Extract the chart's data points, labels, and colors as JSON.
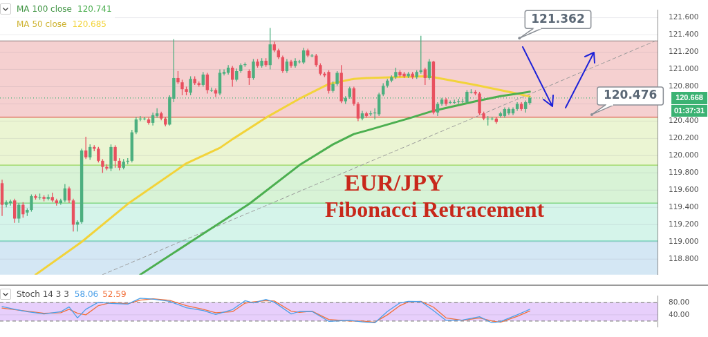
{
  "chart_data": [
    {
      "type": "candlestick",
      "title": "EUR/JPY",
      "subtitle": "Fibonacci Retracement",
      "categories": [
        null,
        null,
        null,
        null,
        null,
        null,
        null,
        null,
        null,
        null,
        null,
        null,
        null,
        null,
        null,
        null,
        null,
        null,
        null,
        null,
        null,
        null,
        null,
        null,
        null,
        null,
        null,
        null,
        null,
        null,
        null,
        null,
        null,
        null,
        null,
        null,
        null,
        null,
        null,
        null,
        null,
        null,
        null,
        null,
        null,
        null,
        null,
        null,
        null,
        null,
        null,
        null,
        null,
        null,
        null,
        null,
        null,
        null,
        null,
        null,
        null,
        null,
        null,
        null,
        null,
        null,
        null,
        null,
        null,
        null,
        null,
        null,
        null,
        null,
        null,
        null,
        null,
        null,
        null,
        null,
        null,
        null,
        null,
        null,
        null,
        null,
        null,
        null,
        null,
        null,
        null,
        null,
        null,
        null,
        null,
        null,
        null,
        null,
        null,
        null,
        null,
        null,
        null,
        null,
        null,
        null,
        null,
        null,
        null,
        null,
        null,
        null,
        null,
        null,
        null,
        null,
        null,
        null,
        null,
        null,
        null,
        null,
        null,
        null,
        null,
        null,
        null,
        null,
        null,
        null,
        null,
        null,
        null,
        null,
        null,
        null,
        null,
        null,
        null,
        null,
        null,
        null,
        null,
        null,
        null,
        null,
        null,
        null,
        null,
        null,
        null,
        null,
        null,
        null,
        null,
        null,
        null
      ],
      "ohlc": [
        [
          119.68,
          119.72,
          119.3,
          119.43
        ],
        [
          119.43,
          119.48,
          119.4,
          119.46
        ],
        [
          119.45,
          119.49,
          119.42,
          119.47
        ],
        [
          119.48,
          119.5,
          119.22,
          119.27
        ],
        [
          119.27,
          119.45,
          119.22,
          119.43
        ],
        [
          119.43,
          119.46,
          119.28,
          119.32
        ],
        [
          119.34,
          119.39,
          119.3,
          119.37
        ],
        [
          119.37,
          119.55,
          119.35,
          119.53
        ],
        [
          119.53,
          119.55,
          119.49,
          119.51
        ],
        [
          119.52,
          119.56,
          119.49,
          119.52
        ],
        [
          119.52,
          119.54,
          119.47,
          119.5
        ],
        [
          119.5,
          119.55,
          119.48,
          119.52
        ],
        [
          119.52,
          119.57,
          119.46,
          119.48
        ],
        [
          119.48,
          119.5,
          119.42,
          119.45
        ],
        [
          119.45,
          119.5,
          119.43,
          119.48
        ],
        [
          119.48,
          119.67,
          119.46,
          119.62
        ],
        [
          119.62,
          119.64,
          119.45,
          119.48
        ],
        [
          119.48,
          119.5,
          119.12,
          119.2
        ],
        [
          119.2,
          119.25,
          119.12,
          119.23
        ],
        [
          119.23,
          120.08,
          119.21,
          120.06
        ],
        [
          120.06,
          120.22,
          119.96,
          119.98
        ],
        [
          119.98,
          120.13,
          119.95,
          120.1
        ],
        [
          120.1,
          120.12,
          120.05,
          120.08
        ],
        [
          120.08,
          120.1,
          119.92,
          119.94
        ],
        [
          119.94,
          119.96,
          119.8,
          119.87
        ],
        [
          119.87,
          119.9,
          119.83,
          119.85
        ],
        [
          119.85,
          120.13,
          119.82,
          120.1
        ],
        [
          120.1,
          120.12,
          119.86,
          119.94
        ],
        [
          119.94,
          119.97,
          119.83,
          119.86
        ],
        [
          119.86,
          119.96,
          119.84,
          119.93
        ],
        [
          119.93,
          119.97,
          119.9,
          119.94
        ],
        [
          119.94,
          120.3,
          119.92,
          120.27
        ],
        [
          120.27,
          120.45,
          120.25,
          120.42
        ],
        [
          120.42,
          120.46,
          120.4,
          120.43
        ],
        [
          120.43,
          120.45,
          120.41,
          120.43
        ],
        [
          120.42,
          120.44,
          120.36,
          120.38
        ],
        [
          120.38,
          120.5,
          120.35,
          120.47
        ],
        [
          120.46,
          120.55,
          120.44,
          120.49
        ],
        [
          120.49,
          120.51,
          120.41,
          120.43
        ],
        [
          120.43,
          120.45,
          120.34,
          120.36
        ],
        [
          120.36,
          120.7,
          120.35,
          120.68
        ],
        [
          120.66,
          121.35,
          120.62,
          120.9
        ],
        [
          120.9,
          120.98,
          120.83,
          120.85
        ],
        [
          120.85,
          120.88,
          120.7,
          120.77
        ],
        [
          120.77,
          120.8,
          120.7,
          120.74
        ],
        [
          120.73,
          120.92,
          120.7,
          120.89
        ],
        [
          120.89,
          120.92,
          120.82,
          120.84
        ],
        [
          120.84,
          120.86,
          120.8,
          120.82
        ],
        [
          120.82,
          120.97,
          120.8,
          120.94
        ],
        [
          120.94,
          120.96,
          120.72,
          120.76
        ],
        [
          120.76,
          120.79,
          120.74,
          120.76
        ],
        [
          120.76,
          120.78,
          120.68,
          120.72
        ],
        [
          120.72,
          121.0,
          120.7,
          120.96
        ],
        [
          120.95,
          121.0,
          120.93,
          120.97
        ],
        [
          120.96,
          121.05,
          120.94,
          121.02
        ],
        [
          121.02,
          121.04,
          120.8,
          120.88
        ],
        [
          120.88,
          121.01,
          120.86,
          120.98
        ],
        [
          120.98,
          121.07,
          120.96,
          121.05
        ],
        [
          121.05,
          121.08,
          121.03,
          121.06
        ],
        [
          120.98,
          121.0,
          120.82,
          120.9
        ],
        [
          120.9,
          121.12,
          120.88,
          121.09
        ],
        [
          121.09,
          121.12,
          121.02,
          121.04
        ],
        [
          121.04,
          121.13,
          121.02,
          121.1
        ],
        [
          121.1,
          121.13,
          121.03,
          121.05
        ],
        [
          121.05,
          121.48,
          121.0,
          121.29
        ],
        [
          121.29,
          121.32,
          121.2,
          121.22
        ],
        [
          121.22,
          121.24,
          121.12,
          121.14
        ],
        [
          121.14,
          121.16,
          120.96,
          120.98
        ],
        [
          120.98,
          121.12,
          120.96,
          121.09
        ],
        [
          121.09,
          121.11,
          121.02,
          121.04
        ],
        [
          121.04,
          121.13,
          121.02,
          121.1
        ],
        [
          121.09,
          121.11,
          121.07,
          121.09
        ],
        [
          121.08,
          121.25,
          121.06,
          121.22
        ],
        [
          121.22,
          121.24,
          121.14,
          121.16
        ],
        [
          121.16,
          121.18,
          121.14,
          121.16
        ],
        [
          121.16,
          121.18,
          121.03,
          121.05
        ],
        [
          121.05,
          121.07,
          120.93,
          120.95
        ],
        [
          120.95,
          120.97,
          120.91,
          120.93
        ],
        [
          120.97,
          120.99,
          120.72,
          120.75
        ],
        [
          120.75,
          120.86,
          120.73,
          120.83
        ],
        [
          120.83,
          120.98,
          120.81,
          120.96
        ],
        [
          120.96,
          121.05,
          120.61,
          120.63
        ],
        [
          120.63,
          120.69,
          120.6,
          120.67
        ],
        [
          120.68,
          120.8,
          120.66,
          120.78
        ],
        [
          120.78,
          120.8,
          120.58,
          120.6
        ],
        [
          120.6,
          120.62,
          120.4,
          120.43
        ],
        [
          120.43,
          120.52,
          120.41,
          120.49
        ],
        [
          120.49,
          120.51,
          120.44,
          120.46
        ],
        [
          120.48,
          120.52,
          120.46,
          120.49
        ],
        [
          120.49,
          120.55,
          120.42,
          120.5
        ],
        [
          120.48,
          120.73,
          120.46,
          120.71
        ],
        [
          120.71,
          120.84,
          120.69,
          120.81
        ],
        [
          120.81,
          120.89,
          120.79,
          120.87
        ],
        [
          120.87,
          120.93,
          120.85,
          120.91
        ],
        [
          120.91,
          121.02,
          120.89,
          120.97
        ],
        [
          120.97,
          120.99,
          120.91,
          120.93
        ],
        [
          120.95,
          120.97,
          120.9,
          120.92
        ],
        [
          120.92,
          120.97,
          120.9,
          120.95
        ],
        [
          120.95,
          120.97,
          120.89,
          120.91
        ],
        [
          120.91,
          120.99,
          120.89,
          120.97
        ],
        [
          120.97,
          121.39,
          120.95,
          120.99
        ],
        [
          121.0,
          121.02,
          120.82,
          120.9
        ],
        [
          120.9,
          121.12,
          120.88,
          121.09
        ],
        [
          121.09,
          121.1,
          120.48,
          120.5
        ],
        [
          120.5,
          120.62,
          120.46,
          120.6
        ],
        [
          120.6,
          120.67,
          120.58,
          120.65
        ],
        [
          120.65,
          120.67,
          120.58,
          120.6
        ],
        [
          120.62,
          120.64,
          120.6,
          120.62
        ],
        [
          120.62,
          120.65,
          120.6,
          120.62
        ],
        [
          120.62,
          120.66,
          120.6,
          120.63
        ],
        [
          120.63,
          120.66,
          120.61,
          120.63
        ],
        [
          120.62,
          120.76,
          120.6,
          120.74
        ],
        [
          120.74,
          120.77,
          120.72,
          120.74
        ],
        [
          120.74,
          120.76,
          120.7,
          120.72
        ],
        [
          120.72,
          120.74,
          120.47,
          120.49
        ],
        [
          120.49,
          120.51,
          120.41,
          120.43
        ],
        [
          120.43,
          120.46,
          120.35,
          120.43
        ],
        [
          120.43,
          120.45,
          120.41,
          120.43
        ],
        [
          120.43,
          120.45,
          120.37,
          120.39
        ],
        [
          120.46,
          120.51,
          120.44,
          120.49
        ],
        [
          120.46,
          120.56,
          120.44,
          120.54
        ],
        [
          120.49,
          120.56,
          120.47,
          120.54
        ],
        [
          120.49,
          120.56,
          120.47,
          120.54
        ],
        [
          120.54,
          120.62,
          120.52,
          120.6
        ],
        [
          120.6,
          120.62,
          120.52,
          120.54
        ],
        [
          120.54,
          120.64,
          120.5,
          120.62
        ],
        [
          120.61,
          120.69,
          120.59,
          120.67
        ],
        null,
        null,
        null,
        null,
        null,
        null,
        null,
        null,
        null,
        null,
        null,
        null,
        null,
        null,
        null,
        null,
        null,
        null,
        null,
        null,
        null,
        null,
        null,
        null,
        null,
        null,
        null,
        null,
        null,
        null
      ],
      "series": [
        {
          "type": "line",
          "name": "MA 100 close",
          "color": "#4caf50",
          "values": [
            null,
            null,
            null,
            null,
            null,
            null,
            null,
            null,
            null,
            null,
            null,
            null,
            null,
            null,
            null,
            null,
            null,
            null,
            null,
            null,
            null,
            null,
            null,
            null,
            null,
            null,
            null,
            null,
            null,
            null,
            null,
            null,
            null,
            118.62,
            null,
            null,
            null,
            null,
            null,
            null,
            null,
            null,
            null,
            null,
            null,
            119.0,
            null,
            null,
            null,
            null,
            null,
            null,
            null,
            null,
            null,
            null,
            null,
            null,
            null,
            119.44,
            null,
            null,
            null,
            null,
            null,
            null,
            null,
            null,
            null,
            null,
            null,
            119.89,
            null,
            null,
            null,
            null,
            null,
            null,
            null,
            120.13,
            null,
            null,
            null,
            null,
            120.25,
            null,
            null,
            120.29,
            null,
            null,
            null,
            null,
            null,
            null,
            null,
            null,
            null,
            120.43,
            null,
            null,
            null,
            null,
            null,
            120.52,
            null,
            null,
            null,
            null,
            null,
            null,
            null,
            null,
            null,
            120.63,
            null,
            null,
            null,
            null,
            null,
            120.69,
            null,
            null,
            null,
            null,
            null,
            null,
            120.741,
            null,
            null,
            null,
            null,
            null,
            null,
            null,
            null,
            null,
            null,
            null,
            null,
            null,
            null,
            null,
            null,
            null,
            null,
            null,
            null,
            null,
            null,
            null,
            null,
            null,
            null,
            null,
            null,
            null,
            null
          ]
        },
        {
          "type": "line",
          "name": "MA 50 close",
          "color": "#f2d33a",
          "values": [
            null,
            null,
            null,
            null,
            null,
            null,
            null,
            null,
            118.62,
            null,
            null,
            null,
            null,
            null,
            null,
            null,
            null,
            null,
            null,
            119.0,
            null,
            null,
            null,
            null,
            null,
            null,
            null,
            null,
            null,
            null,
            119.44,
            null,
            null,
            null,
            null,
            null,
            null,
            null,
            null,
            null,
            null,
            null,
            null,
            null,
            119.91,
            null,
            null,
            null,
            null,
            null,
            null,
            null,
            120.09,
            null,
            null,
            120.19,
            null,
            null,
            null,
            null,
            null,
            null,
            null,
            120.44,
            null,
            null,
            null,
            null,
            null,
            null,
            null,
            120.66,
            null,
            null,
            null,
            null,
            null,
            null,
            120.83,
            null,
            null,
            null,
            null,
            null,
            120.89,
            null,
            null,
            120.9,
            null,
            null,
            null,
            null,
            null,
            null,
            null,
            null,
            null,
            null,
            null,
            null,
            null,
            120.92,
            null,
            120.91,
            null,
            null,
            null,
            null,
            null,
            null,
            null,
            null,
            null,
            120.82,
            null,
            null,
            null,
            null,
            null,
            null,
            null,
            null,
            120.73,
            null,
            null,
            null,
            120.685,
            null,
            null,
            null,
            null,
            null,
            null,
            null,
            null,
            null,
            null,
            null,
            null,
            null,
            null,
            null,
            null,
            null,
            null,
            null,
            null,
            null,
            null,
            null,
            null,
            null,
            null,
            null,
            null,
            null,
            null
          ]
        },
        {
          "type": "line",
          "color": "#9a9a9a",
          "line_style": "dashed",
          "values": [
            null,
            null,
            null,
            null,
            null,
            null,
            null,
            null,
            null,
            null,
            null,
            null,
            null,
            null,
            null,
            null,
            null,
            null,
            null,
            null,
            null,
            null,
            null,
            null,
            118.62,
            null,
            null,
            null,
            null,
            null,
            null,
            null,
            null,
            null,
            null,
            null,
            null,
            null,
            null,
            null,
            null,
            null,
            null,
            null,
            null,
            null,
            null,
            null,
            null,
            null,
            null,
            null,
            null,
            null,
            null,
            null,
            null,
            null,
            null,
            null,
            null,
            null,
            null,
            null,
            null,
            null,
            null,
            null,
            null,
            null,
            null,
            null,
            null,
            null,
            null,
            null,
            null,
            null,
            null,
            null,
            null,
            null,
            null,
            null,
            null,
            null,
            null,
            null,
            null,
            null,
            null,
            null,
            null,
            null,
            null,
            null,
            null,
            null,
            null,
            null,
            null,
            null,
            null,
            null,
            null,
            null,
            null,
            null,
            null,
            null,
            null,
            null,
            null,
            null,
            null,
            null,
            null,
            null,
            null,
            null,
            null,
            null,
            null,
            null,
            null,
            null,
            null,
            null,
            null,
            null,
            null,
            null,
            null,
            null,
            null,
            null,
            null,
            null,
            null,
            null,
            null,
            null,
            null,
            null,
            null,
            null,
            null,
            null,
            null,
            null,
            null,
            null,
            null,
            null,
            null,
            null,
            121.33
          ]
        }
      ],
      "bands": [
        {
          "axis": "y",
          "from": 120.447,
          "to": 121.33,
          "color": "#f5d0d0"
        },
        {
          "axis": "y",
          "from": 119.89,
          "to": 120.447,
          "color": "#ebf5d3"
        },
        {
          "axis": "y",
          "from": 119.45,
          "to": 119.89,
          "color": "#d8f3d6"
        },
        {
          "axis": "y",
          "from": 119.01,
          "to": 119.45,
          "color": "#d5f4ea"
        },
        {
          "axis": "y",
          "from": 118.62,
          "to": 119.01,
          "color": "#d4e7f4"
        }
      ],
      "ref_lines": [
        {
          "axis": "y",
          "value": 121.33,
          "color": "#8a7a7a"
        },
        {
          "axis": "y",
          "value": 120.447,
          "color": "#e05a4e"
        },
        {
          "axis": "y",
          "value": 119.89,
          "color": "#98d45a"
        },
        {
          "axis": "y",
          "value": 119.45,
          "color": "#74d274"
        },
        {
          "axis": "y",
          "value": 119.01,
          "color": "#4cc4a2"
        },
        {
          "axis": "y",
          "value": 120.668,
          "label": "120.668",
          "color": "#3bb273",
          "line_style": "dotted"
        }
      ],
      "annotations": [
        {
          "text": "121.362",
          "y": 121.362
        },
        {
          "text": "120.476",
          "y": 120.476
        },
        "120.741",
        "120.685",
        "01:37:31"
      ],
      "ylim": [
        118.62,
        121.69
      ],
      "yticks": [
        {
          "value": 118.8,
          "label": "118.800"
        },
        {
          "value": 119,
          "label": "119.000"
        },
        {
          "value": 119.2,
          "label": "119.200"
        },
        {
          "value": 119.4,
          "label": "119.400"
        },
        {
          "value": 119.6,
          "label": "119.600"
        },
        {
          "value": 119.8,
          "label": "119.800"
        },
        {
          "value": 120,
          "label": "120.000"
        },
        {
          "value": 120.2,
          "label": "120.200"
        },
        {
          "value": 120.4,
          "label": "120.400"
        },
        {
          "value": 120.6,
          "label": null
        },
        {
          "value": 120.8,
          "label": "120.800"
        },
        {
          "value": 121,
          "label": "121.000"
        },
        {
          "value": 121.2,
          "label": "121.200"
        },
        {
          "value": 121.4,
          "label": "121.400"
        },
        {
          "value": 121.6,
          "label": "121.600"
        }
      ],
      "grid": "y",
      "legend": "top left",
      "tick_labels": "y"
    },
    {
      "type": "line",
      "title": "Stoch 14 3 3",
      "categories": [
        null,
        null,
        null,
        null,
        null,
        null,
        null,
        null,
        null,
        null,
        null,
        null,
        null,
        null,
        null,
        null,
        null,
        null,
        null,
        null,
        null,
        null,
        null,
        null,
        null,
        null,
        null,
        null,
        null,
        null,
        null,
        null,
        null,
        null,
        null,
        null,
        null,
        null,
        null,
        null,
        null,
        null,
        null,
        null,
        null,
        null,
        null,
        null,
        null,
        null,
        null,
        null,
        null,
        null,
        null,
        null,
        null,
        null,
        null,
        null,
        null,
        null,
        null,
        null,
        null,
        null,
        null,
        null,
        null,
        null,
        null,
        null,
        null,
        null,
        null,
        null,
        null,
        null,
        null,
        null,
        null,
        null,
        null,
        null,
        null,
        null,
        null,
        null,
        null,
        null,
        null,
        null,
        null,
        null,
        null,
        null,
        null,
        null,
        null,
        null,
        null,
        null,
        null,
        null,
        null,
        null,
        null,
        null,
        null,
        null,
        null,
        null,
        null,
        null,
        null,
        null,
        null,
        null,
        null,
        null,
        null,
        null,
        null,
        null,
        null,
        null,
        null,
        null,
        null,
        null,
        null,
        null,
        null,
        null,
        null,
        null,
        null,
        null,
        null,
        null,
        null,
        null,
        null,
        null,
        null,
        null,
        null,
        null,
        null,
        null,
        null,
        null,
        null,
        null,
        null,
        null,
        null
      ],
      "series": [
        {
          "type": "line",
          "color": "#4a9fe8",
          "values": [
            67,
            null,
            null,
            58,
            null,
            null,
            50,
            null,
            null,
            null,
            43,
            null,
            null,
            null,
            50,
            null,
            66,
            null,
            30,
            null,
            58,
            null,
            null,
            81,
            null,
            null,
            77,
            null,
            null,
            null,
            75,
            null,
            null,
            94,
            null,
            null,
            91,
            null,
            null,
            null,
            84,
            null,
            null,
            null,
            63,
            null,
            null,
            null,
            54,
            null,
            null,
            41,
            null,
            null,
            null,
            57,
            null,
            null,
            86,
            null,
            79,
            null,
            null,
            90,
            null,
            81,
            null,
            null,
            null,
            43,
            null,
            51,
            null,
            null,
            51,
            null,
            null,
            null,
            19,
            null,
            null,
            null,
            null,
            22,
            null,
            null,
            17,
            null,
            null,
            14,
            null,
            null,
            51,
            null,
            null,
            79,
            null,
            84,
            null,
            null,
            83,
            null,
            null,
            54,
            null,
            null,
            22,
            null,
            null,
            null,
            23,
            null,
            null,
            null,
            34,
            null,
            null,
            14,
            null,
            18,
            null,
            null,
            null,
            40,
            null,
            null,
            58.06,
            null,
            null,
            null,
            null,
            null,
            null,
            null,
            null,
            null,
            null,
            null,
            null,
            null,
            null,
            null,
            null,
            null,
            null,
            null,
            null,
            null,
            null,
            null,
            null,
            null,
            null,
            null,
            null,
            null,
            null
          ]
        },
        {
          "type": "line",
          "color": "#f2703a",
          "values": [
            62,
            null,
            null,
            57,
            null,
            null,
            52,
            null,
            null,
            null,
            45,
            null,
            null,
            null,
            47,
            null,
            58,
            null,
            45,
            null,
            40,
            null,
            null,
            70,
            null,
            null,
            80,
            null,
            null,
            null,
            76,
            null,
            null,
            88,
            null,
            null,
            92,
            null,
            null,
            null,
            87,
            null,
            null,
            null,
            70,
            null,
            null,
            null,
            58,
            null,
            null,
            47,
            null,
            null,
            null,
            50,
            null,
            null,
            78,
            null,
            82,
            null,
            null,
            86,
            null,
            85,
            null,
            null,
            null,
            52,
            null,
            48,
            null,
            null,
            52,
            null,
            null,
            null,
            25,
            null,
            null,
            null,
            null,
            20,
            null,
            null,
            20,
            null,
            null,
            16,
            null,
            null,
            40,
            null,
            null,
            70,
            null,
            82,
            null,
            null,
            84,
            null,
            null,
            65,
            null,
            null,
            30,
            null,
            null,
            null,
            22,
            null,
            null,
            null,
            30,
            null,
            null,
            20,
            null,
            16,
            null,
            null,
            null,
            35,
            null,
            null,
            52.59,
            null,
            null,
            null,
            null,
            null,
            null,
            null,
            null,
            null,
            null,
            null,
            null,
            null,
            null,
            null,
            null,
            null,
            null,
            null,
            null,
            null,
            null,
            null,
            null,
            null,
            null,
            null,
            null,
            null,
            null
          ]
        }
      ],
      "annotations": [
        "58.06",
        "52.59"
      ],
      "bands": [
        {
          "axis": "y",
          "from": 20,
          "to": 80,
          "color": "#e7cffb"
        }
      ],
      "ref_lines": [
        {
          "axis": "y",
          "value": 80,
          "color": "#888888",
          "line_style": "dashed"
        },
        {
          "axis": "y",
          "value": 20,
          "color": "#888888",
          "line_style": "dashed"
        }
      ],
      "ylim": [
        0,
        102
      ],
      "yticks": [
        {
          "value": 40,
          "label": "40.00"
        },
        {
          "value": 80,
          "label": "80.00"
        }
      ],
      "grid": "y",
      "tick_labels": "y"
    }
  ]
}
